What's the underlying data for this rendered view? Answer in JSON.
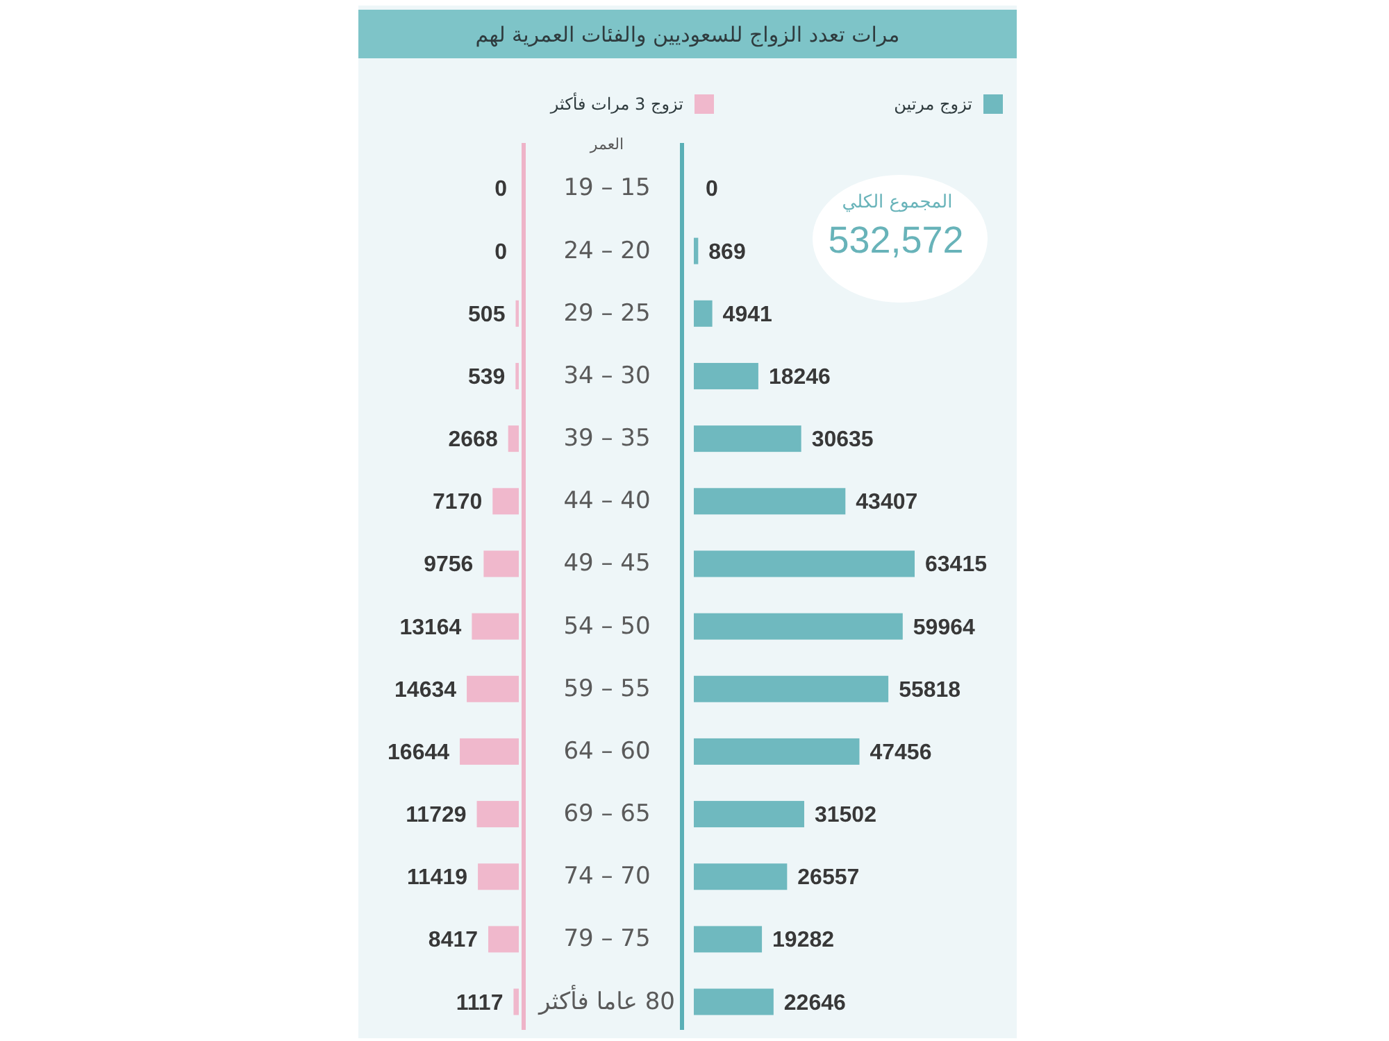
{
  "chart_data": [
    {
      "type": "bar",
      "orientation": "horizontal",
      "title": "مرات تعدد الزواج للسعوديين والفئات العمرية لهم",
      "ylabel": "العمر",
      "categories": [
        "15 – 19",
        "20 – 24",
        "25 – 29",
        "30 – 34",
        "35 – 39",
        "40 – 44",
        "45 – 49",
        "50 – 54",
        "55 – 59",
        "60 – 64",
        "65 – 69",
        "70 – 74",
        "75 – 79",
        "80 عاما فأكثر"
      ],
      "series": [
        {
          "name": "تزوج مرتين",
          "color": "#6fb9bf",
          "values": [
            0,
            869,
            4941,
            18246,
            30635,
            43407,
            63415,
            59964,
            55818,
            47456,
            31502,
            26557,
            19282,
            22646
          ]
        }
      ],
      "data_labels": true,
      "legend": "top",
      "annotations": [
        "المجموع الكلي",
        "532,572"
      ]
    },
    {
      "type": "bar",
      "orientation": "horizontal",
      "categories": [
        null,
        null,
        null,
        null,
        null,
        null,
        null,
        null,
        null,
        null,
        null,
        null,
        null,
        null
      ],
      "series": [
        {
          "name": "تزوج 3 مرات فأكثر",
          "color": "#f0b8cc",
          "values": [
            0,
            0,
            505,
            539,
            2668,
            7170,
            9756,
            13164,
            14634,
            16644,
            11729,
            11419,
            8417,
            1117
          ]
        }
      ],
      "data_labels": true,
      "legend": "top"
    }
  ]
}
